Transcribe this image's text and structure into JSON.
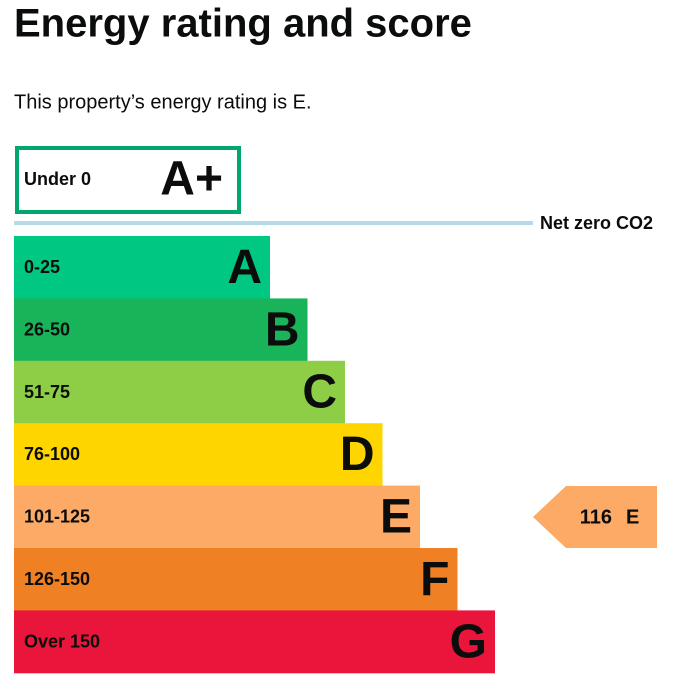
{
  "header": {
    "title": "Energy rating and score",
    "intro": "This property’s energy rating is E."
  },
  "top_band": {
    "range": "Under 0",
    "letter": "A+"
  },
  "net_zero_label": "Net zero CO2",
  "bands": [
    {
      "range": "0-25",
      "letter": "A"
    },
    {
      "range": "26-50",
      "letter": "B"
    },
    {
      "range": "51-75",
      "letter": "C"
    },
    {
      "range": "76-100",
      "letter": "D"
    },
    {
      "range": "101-125",
      "letter": "E"
    },
    {
      "range": "126-150",
      "letter": "F"
    },
    {
      "range": "Over 150",
      "letter": "G"
    }
  ],
  "current": {
    "score": 116,
    "letter": "E"
  }
}
